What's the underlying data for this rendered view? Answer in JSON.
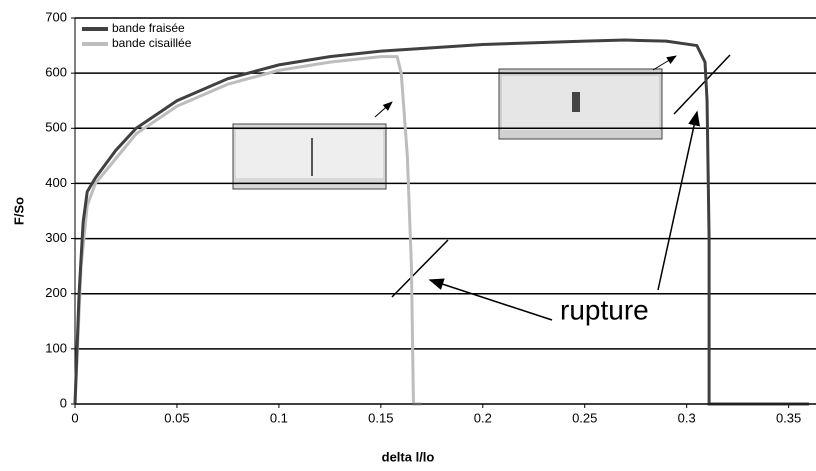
{
  "chart_data": {
    "type": "line",
    "xlabel": "delta l/lo",
    "ylabel": "F/So",
    "annotation": "rupture",
    "xlim": [
      0,
      0.36
    ],
    "xticks": [
      0,
      0.05,
      0.1,
      0.15,
      0.2,
      0.25,
      0.3,
      0.35
    ],
    "ylim": [
      0,
      700
    ],
    "yticks": [
      0,
      100,
      200,
      300,
      400,
      500,
      600,
      700
    ],
    "grid": true,
    "legend": "upper left",
    "series": [
      {
        "name": "bande fraisée",
        "color": "#404040",
        "x": [
          0,
          0.002,
          0.004,
          0.006,
          0.01,
          0.02,
          0.03,
          0.05,
          0.075,
          0.1,
          0.125,
          0.15,
          0.2,
          0.25,
          0.27,
          0.29,
          0.305,
          0.309,
          0.31,
          0.311,
          0.311,
          0.36
        ],
        "values": [
          0,
          200,
          330,
          385,
          410,
          460,
          500,
          550,
          590,
          615,
          630,
          640,
          652,
          658,
          660,
          658,
          650,
          620,
          550,
          300,
          0,
          0
        ]
      },
      {
        "name": "bande cisaillée",
        "color": "#bdbdbd",
        "x": [
          0,
          0.003,
          0.006,
          0.01,
          0.02,
          0.03,
          0.05,
          0.075,
          0.1,
          0.125,
          0.15,
          0.158,
          0.16,
          0.163,
          0.165,
          0.166,
          0.17
        ],
        "values": [
          0,
          250,
          360,
          400,
          445,
          490,
          540,
          580,
          605,
          620,
          630,
          630,
          600,
          450,
          250,
          0,
          0
        ]
      }
    ]
  }
}
